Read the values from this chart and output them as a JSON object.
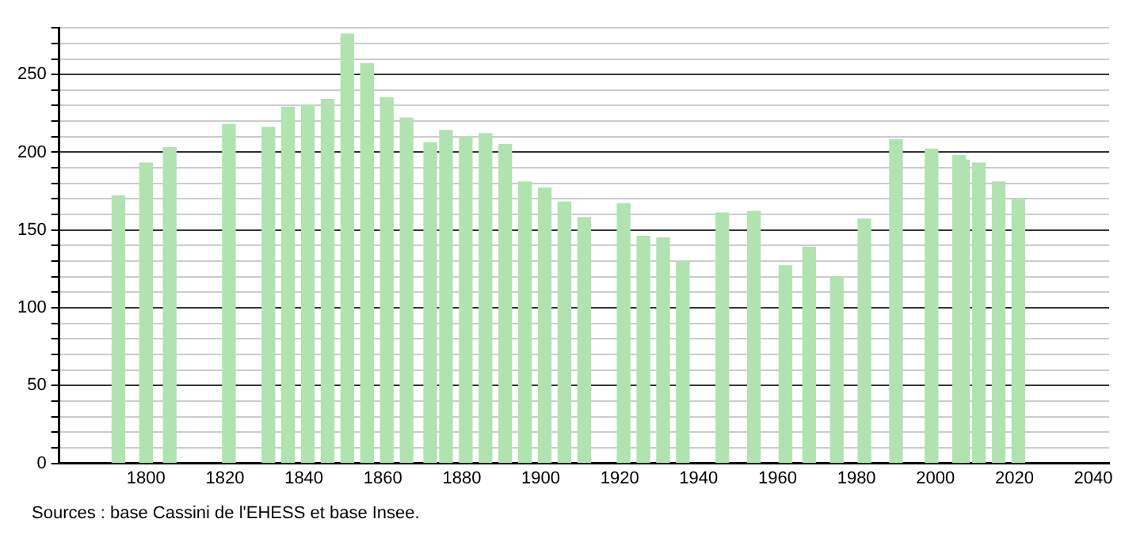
{
  "chart_data": {
    "type": "bar",
    "x": [
      1793,
      1800,
      1806,
      1821,
      1831,
      1836,
      1841,
      1846,
      1851,
      1856,
      1861,
      1866,
      1872,
      1876,
      1881,
      1886,
      1891,
      1896,
      1901,
      1906,
      1911,
      1921,
      1926,
      1931,
      1936,
      1946,
      1954,
      1962,
      1968,
      1975,
      1982,
      1990,
      1999,
      2006,
      2007,
      2011,
      2016,
      2021
    ],
    "values": [
      172,
      193,
      203,
      218,
      216,
      229,
      230,
      234,
      276,
      257,
      235,
      222,
      206,
      214,
      210,
      212,
      205,
      181,
      177,
      168,
      158,
      167,
      146,
      145,
      130,
      161,
      162,
      127,
      139,
      120,
      157,
      208,
      202,
      198,
      195,
      193,
      181,
      170
    ],
    "color": "#b0e3b0",
    "xlim": [
      1778,
      2044
    ],
    "xticks": [
      1800,
      1820,
      1840,
      1860,
      1880,
      1900,
      1920,
      1940,
      1960,
      1980,
      2000,
      2020,
      2040
    ],
    "ylim": [
      0,
      280
    ],
    "yticks": [
      0,
      {
        "value": 10,
        "label": null
      },
      {
        "value": 20,
        "label": null
      },
      {
        "value": 30,
        "label": null
      },
      {
        "value": 40,
        "label": null
      },
      50,
      {
        "value": 60,
        "label": null
      },
      {
        "value": 70,
        "label": null
      },
      {
        "value": 80,
        "label": null
      },
      {
        "value": 90,
        "label": null
      },
      100,
      {
        "value": 110,
        "label": null
      },
      {
        "value": 120,
        "label": null
      },
      {
        "value": 130,
        "label": null
      },
      {
        "value": 140,
        "label": null
      },
      150,
      {
        "value": 160,
        "label": null
      },
      {
        "value": 170,
        "label": null
      },
      {
        "value": 180,
        "label": null
      },
      {
        "value": 190,
        "label": null
      },
      200,
      {
        "value": 210,
        "label": null
      },
      {
        "value": 220,
        "label": null
      },
      {
        "value": 230,
        "label": null
      },
      {
        "value": 240,
        "label": null
      },
      250,
      {
        "value": 260,
        "label": null
      },
      {
        "value": 270,
        "label": null
      },
      {
        "value": 280,
        "label": null
      }
    ],
    "grid": "y",
    "annotations": [
      "Sources : base Cassini de l'EHESS et base Insee."
    ]
  }
}
